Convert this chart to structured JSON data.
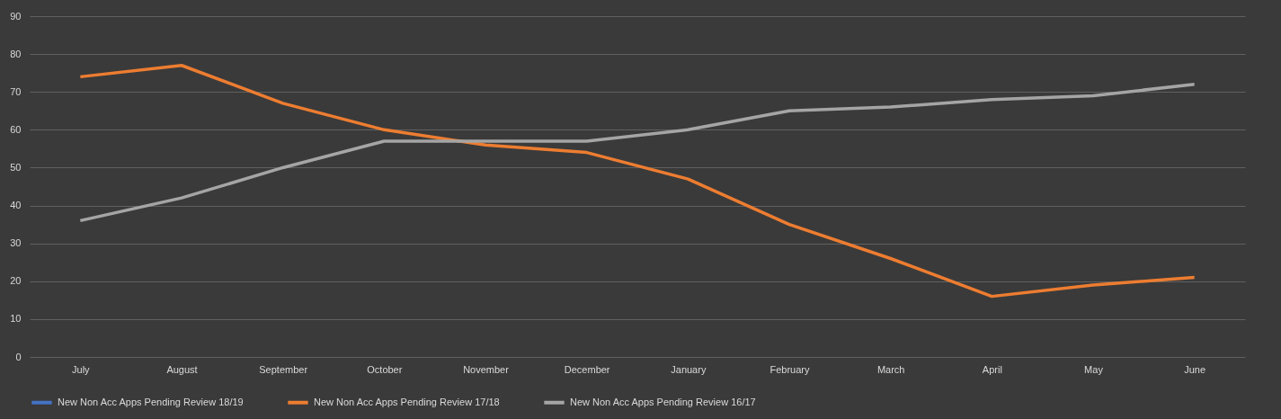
{
  "chart_data": {
    "type": "line",
    "categories": [
      "July",
      "August",
      "September",
      "October",
      "November",
      "December",
      "January",
      "February",
      "March",
      "April",
      "May",
      "June"
    ],
    "series": [
      {
        "name": "New Non Acc Apps Pending Review 18/19",
        "color": "#4472c4",
        "values": [
          null,
          null,
          null,
          null,
          null,
          null,
          null,
          null,
          null,
          null,
          null,
          null
        ]
      },
      {
        "name": "New Non Acc Apps Pending Review 17/18",
        "color": "#ed7d31",
        "values": [
          74,
          77,
          67,
          60,
          56,
          54,
          47,
          35,
          26,
          16,
          19,
          21
        ]
      },
      {
        "name": "New Non Acc Apps Pending Review 16/17",
        "color": "#a5a5a5",
        "values": [
          36,
          42,
          50,
          57,
          57,
          57,
          60,
          65,
          66,
          68,
          69,
          72
        ]
      }
    ],
    "ylim": [
      0,
      90
    ],
    "yticks": [
      0,
      10,
      20,
      30,
      40,
      50,
      60,
      70,
      80,
      90
    ],
    "grid": "y",
    "legend": "bottom",
    "marker": "none",
    "line_style": "solid"
  }
}
